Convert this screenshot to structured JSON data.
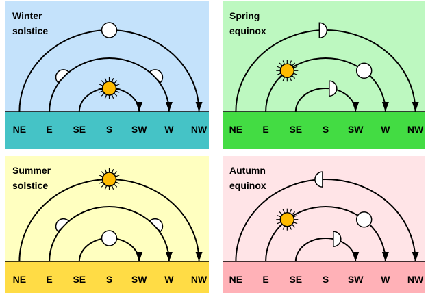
{
  "directions": [
    "NE",
    "E",
    "SE",
    "S",
    "SW",
    "W",
    "NW"
  ],
  "panels": [
    {
      "title_lines": [
        "Winter",
        "solstice"
      ]
    },
    {
      "title_lines": [
        "Spring",
        "equinox"
      ]
    },
    {
      "title_lines": [
        "Summer",
        "solstice"
      ]
    },
    {
      "title_lines": [
        "Autumn",
        "equinox"
      ]
    }
  ]
}
